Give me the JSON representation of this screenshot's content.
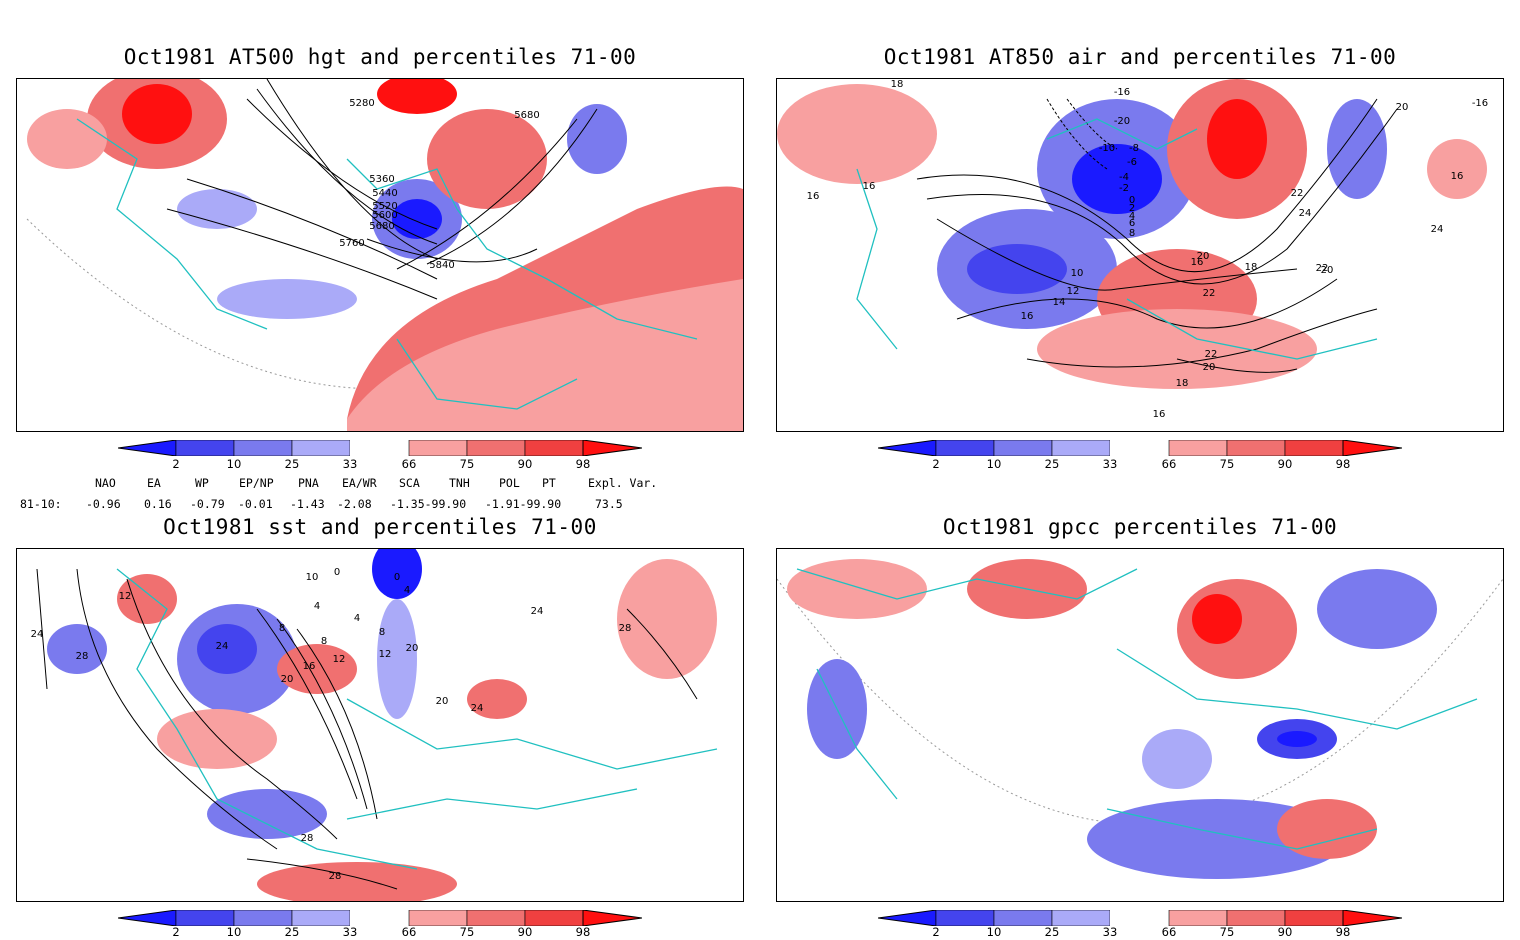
{
  "panels": [
    {
      "id": "p1",
      "title": "Oct1981 AT500 hgt and percentiles 71-00",
      "contour_labels": [
        "5280",
        "5680",
        "5360",
        "5440",
        "5520",
        "5600",
        "5680",
        "5760",
        "5840"
      ]
    },
    {
      "id": "p2",
      "title": "Oct1981 AT850 air and percentiles 71-00",
      "contour_labels": [
        "18",
        "-16",
        "-16",
        "20",
        "16",
        "-20",
        "-10",
        "-8",
        "-6",
        "-4",
        "-2",
        "0",
        "2",
        "4",
        "6",
        "8",
        "16",
        "18",
        "20",
        "22",
        "24",
        "16",
        "24",
        "10",
        "12",
        "14",
        "16",
        "20",
        "22",
        "16",
        "18",
        "22",
        "20",
        "18",
        "16"
      ]
    },
    {
      "id": "p3",
      "title": "Oct1981 sst and percentiles 71-00",
      "contour_labels": [
        "10",
        "0",
        "0",
        "12",
        "24",
        "28",
        "4",
        "8",
        "4",
        "4",
        "8",
        "8",
        "24",
        "20",
        "16",
        "12",
        "12",
        "20",
        "20",
        "24",
        "24",
        "28",
        "28",
        "28"
      ]
    },
    {
      "id": "p4",
      "title": "Oct1981 gpcc percentiles 71-00",
      "contour_labels": []
    }
  ],
  "colorbar": {
    "ticks": [
      "2",
      "10",
      "25",
      "33",
      "66",
      "75",
      "90",
      "98"
    ],
    "colors": {
      "deep_blue": "#1a1aff",
      "blue": "#4444ee",
      "mid_blue": "#7a7aee",
      "light_blue": "#aaaaf8",
      "light_red": "#f8a0a0",
      "mid_red": "#f07070",
      "red": "#f04040",
      "deep_red": "#ff1010"
    }
  },
  "indices": {
    "headers": [
      "NAO",
      "EA",
      "WP",
      "EP/NP",
      "PNA",
      "EA/WR",
      "SCA",
      "TNH",
      "POL",
      "PT",
      "Expl. Var."
    ],
    "row_label": "81-10:",
    "values": [
      "-0.96",
      "0.16",
      "-0.79",
      "-0.01",
      "-1.43",
      "-2.08",
      "-1.35-99.90",
      "-1.91-99.90",
      "73.5"
    ]
  },
  "map_colors": {
    "coast": "#20c0c0",
    "contour": "#000000",
    "grid": "#888888"
  }
}
